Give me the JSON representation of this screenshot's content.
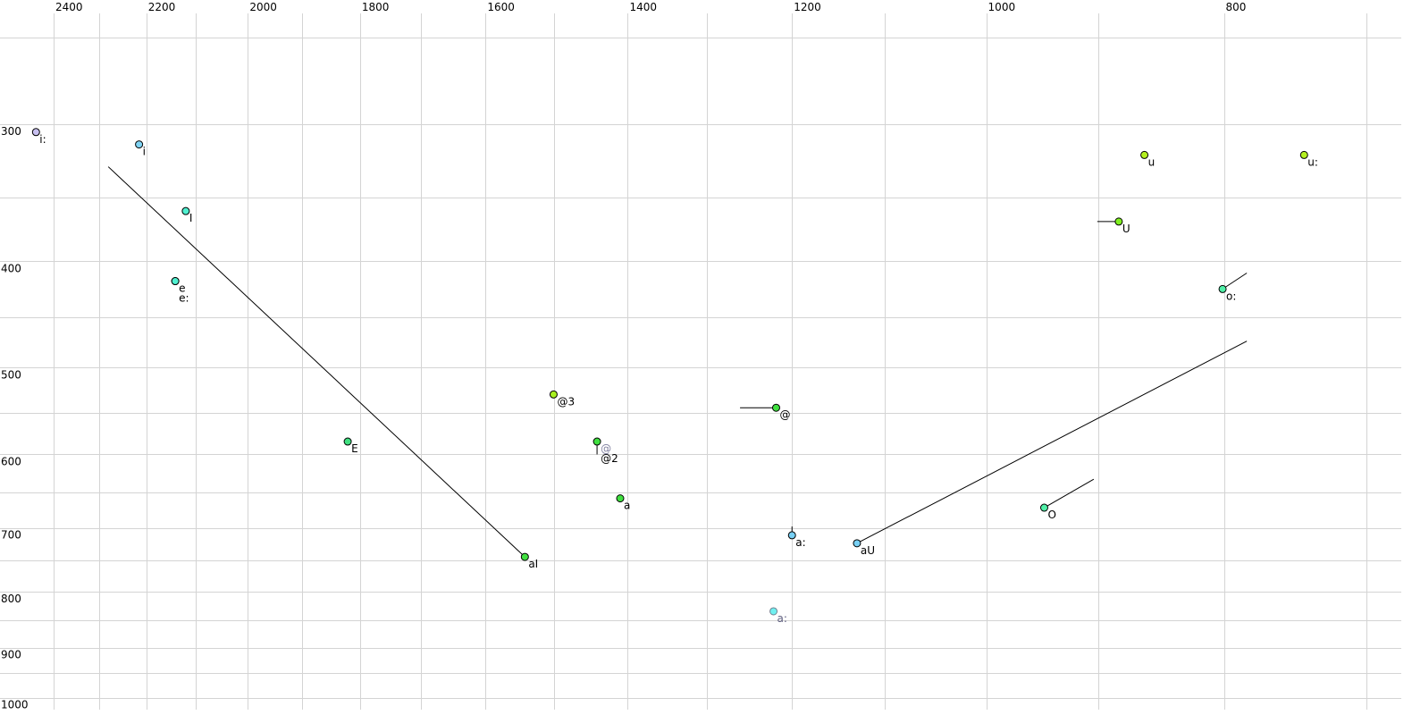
{
  "chart_data": {
    "type": "scatter",
    "title": "",
    "xlabel": "",
    "ylabel": "",
    "x_scale": "log",
    "y_scale": "log",
    "x_reversed": true,
    "xlim": [
      2450,
      700
    ],
    "ylim": [
      250,
      1000
    ],
    "grid": true,
    "x_ticks": [
      2400,
      2200,
      2000,
      1800,
      1600,
      1400,
      1200,
      1000,
      800
    ],
    "x_tick_labels": [
      "2400",
      "2200",
      "2000",
      "1800",
      "1600",
      "1400",
      "1200",
      "1000",
      "800"
    ],
    "x_minor_grid": [
      2300,
      2100,
      1900,
      1700,
      1500,
      1300,
      1100,
      900,
      700
    ],
    "y_ticks": [
      300,
      400,
      500,
      600,
      700,
      800,
      900,
      1000
    ],
    "y_tick_labels": [
      "300",
      "400",
      "500",
      "600",
      "700",
      "800",
      "900",
      "1000"
    ],
    "y_minor_grid": [
      250,
      350,
      450,
      550,
      650,
      750,
      850,
      950
    ],
    "points": [
      {
        "label": "i:",
        "f2": 2440,
        "f1": 305,
        "color": "#c8c0f0"
      },
      {
        "label": "i",
        "f2": 2215,
        "f1": 313,
        "color": "#80d4f4"
      },
      {
        "label": "I",
        "f2": 2120,
        "f1": 360,
        "color": "#50f0d0"
      },
      {
        "label": "e",
        "f2": 2141,
        "f1": 417,
        "color": "#50f0d0"
      },
      {
        "label": "e:",
        "f2": 2141,
        "f1": 417,
        "color": "#50f0d0",
        "label_row": 2
      },
      {
        "label": "E",
        "f2": 1821,
        "f1": 584,
        "color": "#40e080"
      },
      {
        "label": "@3",
        "f2": 1501,
        "f1": 529,
        "color": "#a8f020"
      },
      {
        "label": "@2",
        "f2": 1441,
        "f1": 584,
        "color": "#40e040",
        "label_row": 2,
        "trajectory": [
          1441,
          600
        ]
      },
      {
        "label": "@",
        "f2": 1441,
        "f1": 584,
        "color": "#40e040",
        "label_color": "#8080a0",
        "hidden_marker": true
      },
      {
        "label": "a",
        "f2": 1410,
        "f1": 658,
        "color": "#40e040"
      },
      {
        "label": "aI",
        "f2": 1542,
        "f1": 744,
        "color": "#40e040",
        "trajectory": [
          2280,
          328
        ]
      },
      {
        "label": "@",
        "f2": 1218,
        "f1": 544,
        "color": "#40e040",
        "trajectory": [
          1260,
          544
        ]
      },
      {
        "label": "a:",
        "f2": 1221,
        "f1": 834,
        "color": "#70f0f0",
        "label_color": "#606080",
        "marker_stroke": "#708090"
      },
      {
        "label": "a:",
        "f2": 1200,
        "f1": 711,
        "color": "#78d0f4",
        "trajectory": [
          1200,
          698
        ]
      },
      {
        "label": "aU",
        "f2": 1129,
        "f1": 723,
        "color": "#78d0f4",
        "trajectory": [
          783,
          473
        ]
      },
      {
        "label": "O",
        "f2": 947,
        "f1": 671,
        "color": "#50f0a8",
        "trajectory": [
          904,
          632
        ]
      },
      {
        "label": "u",
        "f2": 862,
        "f1": 320,
        "color": "#b4f020"
      },
      {
        "label": "u:",
        "f2": 742,
        "f1": 320,
        "color": "#b4f020"
      },
      {
        "label": "U",
        "f2": 883,
        "f1": 368,
        "color": "#80f020",
        "trajectory": [
          901,
          368
        ]
      },
      {
        "label": "o:",
        "f2": 801,
        "f1": 424,
        "color": "#50f0a8",
        "trajectory": [
          783,
          410
        ]
      }
    ]
  }
}
